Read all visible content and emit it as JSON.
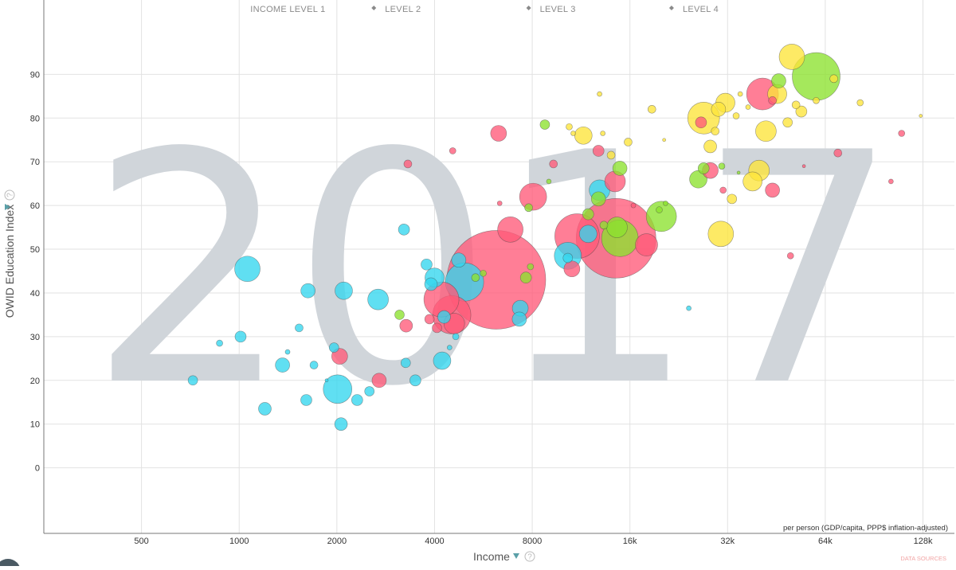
{
  "chart_data": {
    "type": "scatter",
    "year": "2017",
    "xlabel": "Income",
    "ylabel": "OWID Education Index",
    "x_sublabel": "per person (GDP/capita, PPP$ inflation-adjusted)",
    "x_scale": "log2",
    "xlim": [
      250,
      160000
    ],
    "ylim": [
      -15,
      107
    ],
    "x_ticks": [
      {
        "value": 500,
        "label": "500"
      },
      {
        "value": 1000,
        "label": "1000"
      },
      {
        "value": 2000,
        "label": "2000"
      },
      {
        "value": 4000,
        "label": "4000"
      },
      {
        "value": 8000,
        "label": "8000"
      },
      {
        "value": 16000,
        "label": "16k"
      },
      {
        "value": 32000,
        "label": "32k"
      },
      {
        "value": 64000,
        "label": "64k"
      },
      {
        "value": 128000,
        "label": "128k"
      }
    ],
    "y_ticks": [
      {
        "value": 0,
        "label": "0"
      },
      {
        "value": 10,
        "label": "10"
      },
      {
        "value": 20,
        "label": "20"
      },
      {
        "value": 30,
        "label": "30"
      },
      {
        "value": 40,
        "label": "40"
      },
      {
        "value": 50,
        "label": "50"
      },
      {
        "value": 60,
        "label": "60"
      },
      {
        "value": 70,
        "label": "70"
      },
      {
        "value": 80,
        "label": "80"
      },
      {
        "value": 90,
        "label": "90"
      }
    ],
    "income_levels": [
      {
        "label": "INCOME LEVEL 1",
        "x": 1000,
        "x_end": 2600
      },
      {
        "label": "LEVEL 2",
        "x": 2600,
        "x_end": 7800
      },
      {
        "label": "LEVEL 3",
        "x": 7800,
        "x_end": 21500
      },
      {
        "label": "LEVEL 4",
        "x": 21500,
        "x_end": 60000
      }
    ],
    "level_boundaries": [
      2600,
      7800,
      21500
    ],
    "grid": true,
    "legend": "none",
    "colors": {
      "africa": "#33d6ee",
      "asia": "#ff5a78",
      "americas": "#8ce22e",
      "europe": "#fde43a"
    },
    "series": [
      {
        "region": "africa",
        "points": [
          {
            "x": 720,
            "y": 20,
            "size": 6
          },
          {
            "x": 870,
            "y": 28.5,
            "size": 4
          },
          {
            "x": 1010,
            "y": 30,
            "size": 7
          },
          {
            "x": 1060,
            "y": 45.5,
            "size": 16
          },
          {
            "x": 1200,
            "y": 13.5,
            "size": 8
          },
          {
            "x": 1360,
            "y": 23.5,
            "size": 9
          },
          {
            "x": 1410,
            "y": 26.5,
            "size": 3
          },
          {
            "x": 1530,
            "y": 32,
            "size": 5
          },
          {
            "x": 1610,
            "y": 15.5,
            "size": 7
          },
          {
            "x": 1630,
            "y": 40.5,
            "size": 9
          },
          {
            "x": 1700,
            "y": 23.5,
            "size": 5
          },
          {
            "x": 1860,
            "y": 20,
            "size": 2
          },
          {
            "x": 1960,
            "y": 27.5,
            "size": 6
          },
          {
            "x": 2010,
            "y": 18,
            "size": 18
          },
          {
            "x": 2060,
            "y": 10,
            "size": 8
          },
          {
            "x": 2100,
            "y": 40.5,
            "size": 11
          },
          {
            "x": 2310,
            "y": 15.5,
            "size": 7
          },
          {
            "x": 2520,
            "y": 17.5,
            "size": 6
          },
          {
            "x": 2680,
            "y": 38.5,
            "size": 13
          },
          {
            "x": 3220,
            "y": 54.5,
            "size": 7
          },
          {
            "x": 3260,
            "y": 24,
            "size": 6
          },
          {
            "x": 3490,
            "y": 20,
            "size": 7
          },
          {
            "x": 3780,
            "y": 46.5,
            "size": 7
          },
          {
            "x": 3900,
            "y": 42,
            "size": 8
          },
          {
            "x": 4000,
            "y": 43.5,
            "size": 12
          },
          {
            "x": 4220,
            "y": 24.5,
            "size": 11
          },
          {
            "x": 4280,
            "y": 34.5,
            "size": 8
          },
          {
            "x": 4450,
            "y": 27.5,
            "size": 3
          },
          {
            "x": 4650,
            "y": 30,
            "size": 4
          },
          {
            "x": 4750,
            "y": 47.5,
            "size": 9
          },
          {
            "x": 4950,
            "y": 42.5,
            "size": 24
          },
          {
            "x": 7350,
            "y": 36.5,
            "size": 10
          },
          {
            "x": 7300,
            "y": 34,
            "size": 9
          },
          {
            "x": 10300,
            "y": 48.5,
            "size": 17
          },
          {
            "x": 10300,
            "y": 48,
            "size": 6
          },
          {
            "x": 11900,
            "y": 53.5,
            "size": 11
          },
          {
            "x": 12900,
            "y": 63.5,
            "size": 13
          },
          {
            "x": 24300,
            "y": 36.5,
            "size": 3
          }
        ]
      },
      {
        "region": "asia",
        "points": [
          {
            "x": 2040,
            "y": 25.5,
            "size": 10
          },
          {
            "x": 2700,
            "y": 20,
            "size": 9
          },
          {
            "x": 3270,
            "y": 32.5,
            "size": 8
          },
          {
            "x": 3310,
            "y": 69.5,
            "size": 5
          },
          {
            "x": 3860,
            "y": 34,
            "size": 6
          },
          {
            "x": 4070,
            "y": 32,
            "size": 6
          },
          {
            "x": 4200,
            "y": 38.5,
            "size": 22
          },
          {
            "x": 4520,
            "y": 35,
            "size": 24
          },
          {
            "x": 4600,
            "y": 33,
            "size": 13
          },
          {
            "x": 4550,
            "y": 72.5,
            "size": 4
          },
          {
            "x": 6200,
            "y": 43,
            "size": 62
          },
          {
            "x": 6300,
            "y": 76.5,
            "size": 10
          },
          {
            "x": 6350,
            "y": 60.5,
            "size": 3
          },
          {
            "x": 6850,
            "y": 54.5,
            "size": 16
          },
          {
            "x": 8050,
            "y": 62,
            "size": 17
          },
          {
            "x": 9300,
            "y": 69.5,
            "size": 5
          },
          {
            "x": 11000,
            "y": 53,
            "size": 28
          },
          {
            "x": 10600,
            "y": 45.5,
            "size": 10
          },
          {
            "x": 12800,
            "y": 72.5,
            "size": 7
          },
          {
            "x": 14400,
            "y": 65.5,
            "size": 13
          },
          {
            "x": 14500,
            "y": 52.5,
            "size": 50
          },
          {
            "x": 18000,
            "y": 51,
            "size": 14
          },
          {
            "x": 16400,
            "y": 60,
            "size": 3
          },
          {
            "x": 26500,
            "y": 79,
            "size": 7
          },
          {
            "x": 28300,
            "y": 68,
            "size": 10
          },
          {
            "x": 31000,
            "y": 63.5,
            "size": 4
          },
          {
            "x": 41000,
            "y": 85.5,
            "size": 20
          },
          {
            "x": 44000,
            "y": 84,
            "size": 5
          },
          {
            "x": 44000,
            "y": 63.5,
            "size": 9
          },
          {
            "x": 50000,
            "y": 48.5,
            "size": 4
          },
          {
            "x": 55000,
            "y": 69,
            "size": 2
          },
          {
            "x": 70000,
            "y": 72,
            "size": 5
          },
          {
            "x": 102000,
            "y": 65.5,
            "size": 3
          },
          {
            "x": 110000,
            "y": 76.5,
            "size": 4
          }
        ]
      },
      {
        "region": "americas",
        "points": [
          {
            "x": 3120,
            "y": 35,
            "size": 6
          },
          {
            "x": 5350,
            "y": 43.5,
            "size": 5
          },
          {
            "x": 5650,
            "y": 44.5,
            "size": 4
          },
          {
            "x": 7650,
            "y": 43.5,
            "size": 7
          },
          {
            "x": 7800,
            "y": 59.5,
            "size": 5
          },
          {
            "x": 7900,
            "y": 46,
            "size": 4
          },
          {
            "x": 8750,
            "y": 78.5,
            "size": 6
          },
          {
            "x": 9000,
            "y": 65.5,
            "size": 3
          },
          {
            "x": 11900,
            "y": 58,
            "size": 7
          },
          {
            "x": 12800,
            "y": 61.5,
            "size": 9
          },
          {
            "x": 13300,
            "y": 55.5,
            "size": 5
          },
          {
            "x": 14600,
            "y": 55,
            "size": 13
          },
          {
            "x": 14900,
            "y": 68.5,
            "size": 9
          },
          {
            "x": 14900,
            "y": 52.5,
            "size": 23
          },
          {
            "x": 20000,
            "y": 57.5,
            "size": 19
          },
          {
            "x": 19700,
            "y": 59,
            "size": 4
          },
          {
            "x": 20600,
            "y": 60.5,
            "size": 3
          },
          {
            "x": 26000,
            "y": 66,
            "size": 11
          },
          {
            "x": 27000,
            "y": 68.5,
            "size": 7
          },
          {
            "x": 30700,
            "y": 69,
            "size": 4
          },
          {
            "x": 34600,
            "y": 67.5,
            "size": 2
          },
          {
            "x": 46000,
            "y": 88.5,
            "size": 9
          },
          {
            "x": 60000,
            "y": 89.5,
            "size": 30
          }
        ]
      },
      {
        "region": "europe",
        "points": [
          {
            "x": 10400,
            "y": 78,
            "size": 4
          },
          {
            "x": 10700,
            "y": 76.5,
            "size": 3
          },
          {
            "x": 11500,
            "y": 76,
            "size": 11
          },
          {
            "x": 13200,
            "y": 76.5,
            "size": 3
          },
          {
            "x": 14000,
            "y": 71.5,
            "size": 5
          },
          {
            "x": 12900,
            "y": 85.5,
            "size": 3
          },
          {
            "x": 15800,
            "y": 74.5,
            "size": 5
          },
          {
            "x": 18700,
            "y": 82,
            "size": 5
          },
          {
            "x": 20400,
            "y": 75,
            "size": 2
          },
          {
            "x": 27000,
            "y": 80,
            "size": 20
          },
          {
            "x": 28300,
            "y": 73.5,
            "size": 8
          },
          {
            "x": 29300,
            "y": 77,
            "size": 5
          },
          {
            "x": 30000,
            "y": 82,
            "size": 9
          },
          {
            "x": 31500,
            "y": 83.5,
            "size": 12
          },
          {
            "x": 30500,
            "y": 53.5,
            "size": 16
          },
          {
            "x": 33000,
            "y": 61.5,
            "size": 6
          },
          {
            "x": 34000,
            "y": 80.5,
            "size": 4
          },
          {
            "x": 35000,
            "y": 85.5,
            "size": 3
          },
          {
            "x": 37000,
            "y": 82.5,
            "size": 3
          },
          {
            "x": 38200,
            "y": 65.5,
            "size": 12
          },
          {
            "x": 40000,
            "y": 68,
            "size": 13
          },
          {
            "x": 42000,
            "y": 77,
            "size": 13
          },
          {
            "x": 45500,
            "y": 85.5,
            "size": 12
          },
          {
            "x": 49000,
            "y": 79,
            "size": 6
          },
          {
            "x": 50500,
            "y": 94,
            "size": 16
          },
          {
            "x": 52000,
            "y": 83,
            "size": 5
          },
          {
            "x": 54000,
            "y": 81.5,
            "size": 7
          },
          {
            "x": 60000,
            "y": 84,
            "size": 4
          },
          {
            "x": 68000,
            "y": 89,
            "size": 5
          },
          {
            "x": 82000,
            "y": 83.5,
            "size": 4
          },
          {
            "x": 126000,
            "y": 80.5,
            "size": 2
          }
        ]
      }
    ]
  },
  "credit_text": "DATA SOURCES",
  "help_icon_char": "?"
}
